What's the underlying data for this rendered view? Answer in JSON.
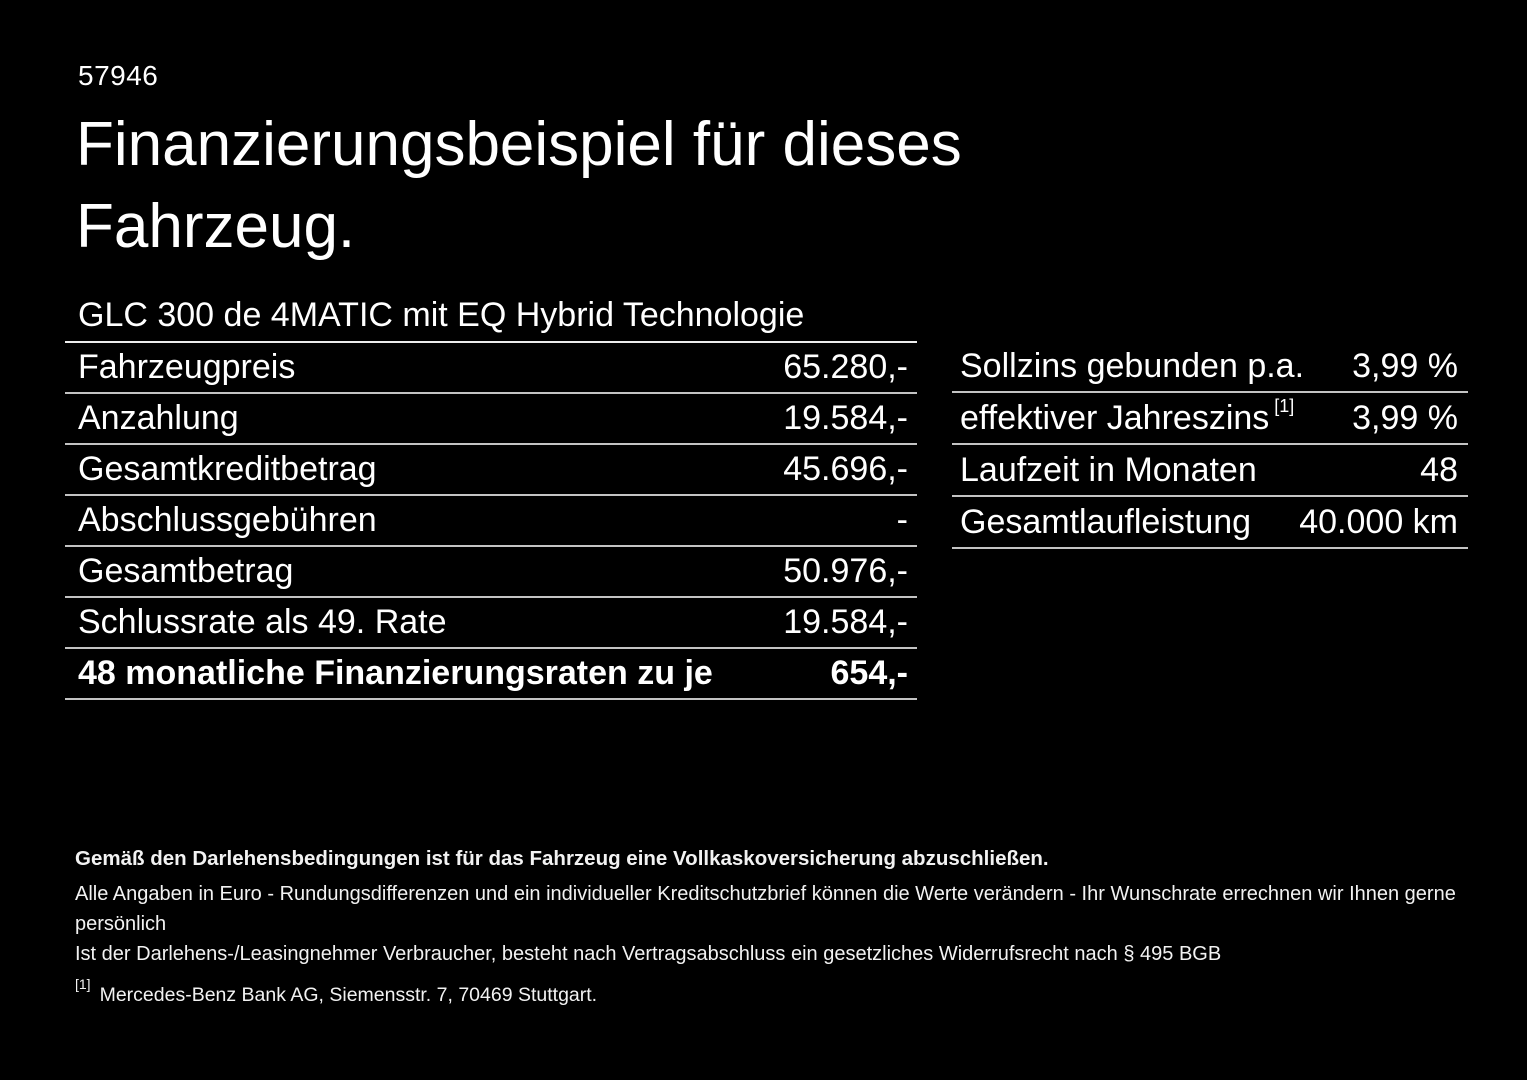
{
  "colors": {
    "background": "#000000",
    "text": "#ffffff",
    "divider": "#c3c3c3",
    "header_rule": "#ededed"
  },
  "header": {
    "code": "57946",
    "title_line1": "Finanzierungsbeispiel für dieses",
    "title_line2": "Fahrzeug.",
    "vehicle": "GLC 300 de 4MATIC mit EQ Hybrid Technologie"
  },
  "financing_table": {
    "rows": [
      {
        "label": "Fahrzeugpreis",
        "value": "65.280,-"
      },
      {
        "label": "Anzahlung",
        "value": "19.584,-"
      },
      {
        "label": "Gesamtkreditbetrag",
        "value": "45.696,-"
      },
      {
        "label": "Abschlussgebühren",
        "value": "-"
      },
      {
        "label": "Gesamtbetrag",
        "value": "50.976,-"
      },
      {
        "label": "Schlussrate als 49. Rate",
        "value": "19.584,-"
      },
      {
        "label": "48 monatliche Finanzierungsraten zu je",
        "value": "654,-"
      }
    ]
  },
  "conditions_table": {
    "rows": [
      {
        "label": "Sollzins gebunden p.a.",
        "value": "3,99 %"
      },
      {
        "label": "effektiver Jahreszins",
        "sup": "[1]",
        "value": "3,99 %"
      },
      {
        "label": "Laufzeit in Monaten",
        "value": "48"
      },
      {
        "label": "Gesamtlaufleistung",
        "value": "40.000 km"
      }
    ]
  },
  "disclaimer": {
    "bold_line": "Gemäß den Darlehensbedingungen ist für das Fahrzeug eine Vollkaskoversicherung abzuschließen.",
    "line2": "Alle Angaben in Euro - Rundungsdifferenzen und ein individueller Kreditschutzbrief können die Werte verändern - Ihr Wunschrate errechnen wir Ihnen gerne persönlich",
    "line3": "Ist der Darlehens-/Leasingnehmer Verbraucher, besteht nach Vertragsabschluss ein gesetzliches Widerrufsrecht nach § 495 BGB",
    "footnote_marker": "[1]",
    "footnote_text": "Mercedes-Benz Bank AG, Siemensstr. 7, 70469 Stuttgart."
  }
}
